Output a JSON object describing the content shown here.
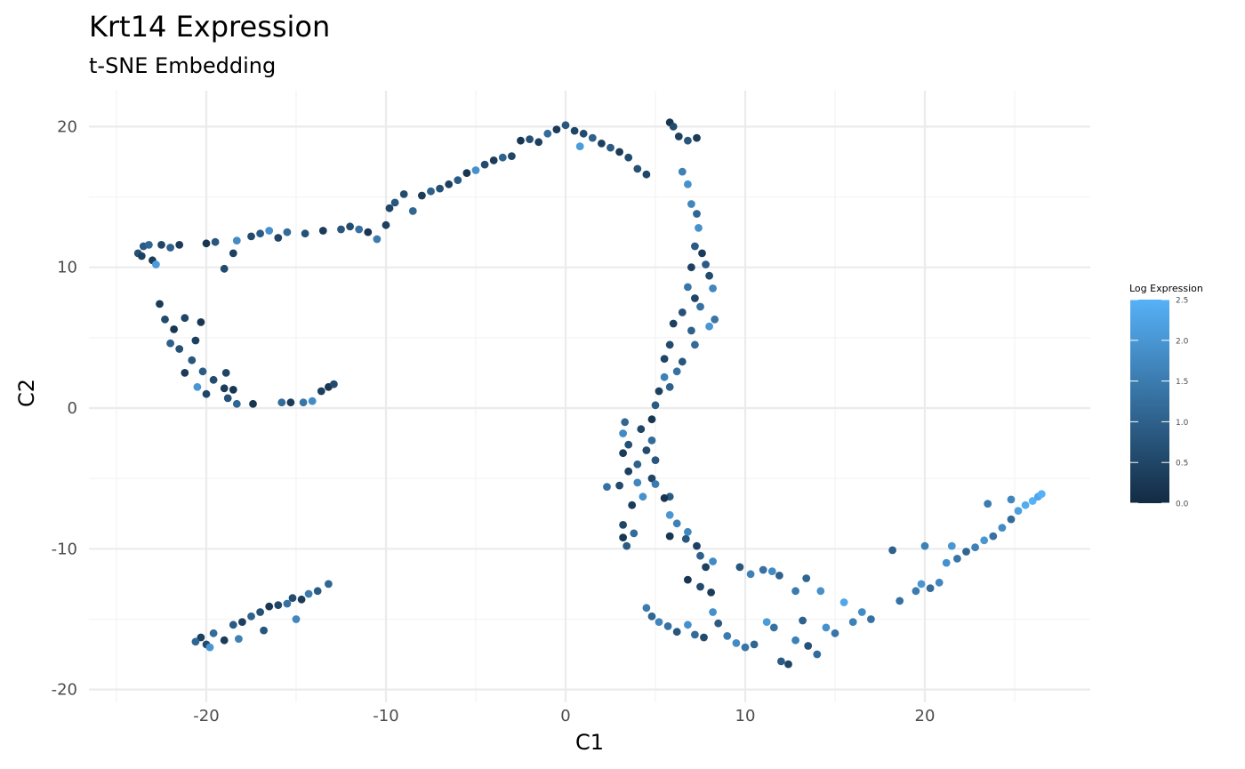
{
  "chart_data": {
    "type": "scatter",
    "title": "Krt14 Expression",
    "subtitle": "t-SNE Embedding",
    "xlabel": "C1",
    "ylabel": "C2",
    "xlim": [
      -25.5,
      29
    ],
    "ylim": [
      -20,
      22
    ],
    "x_ticks": [
      "-20",
      "-10",
      "0",
      "10",
      "20"
    ],
    "x_tick_values": [
      -20,
      -10,
      0,
      10,
      20
    ],
    "y_ticks": [
      "-20",
      "-10",
      "0",
      "10",
      "20"
    ],
    "y_tick_values": [
      -20,
      -10,
      0,
      10,
      20
    ],
    "grid": true,
    "legend": {
      "title": "Log Expression",
      "placement": "right",
      "min": 0,
      "max": 2.5,
      "ticks": [
        "0.0",
        "0.5",
        "1.0",
        "1.5",
        "2.0",
        "2.5"
      ],
      "tick_values": [
        0,
        0.5,
        1.0,
        1.5,
        2.0,
        2.5
      ],
      "color_low": "#132B43",
      "color_high": "#56B1F7"
    },
    "points": [
      [
        -23.5,
        11.5,
        0.9
      ],
      [
        -23.8,
        11.0,
        0.7
      ],
      [
        -23.2,
        11.6,
        1.1
      ],
      [
        -23.0,
        10.5,
        0.3
      ],
      [
        -22.8,
        10.2,
        2.1
      ],
      [
        -22.5,
        11.6,
        0.5
      ],
      [
        -22.0,
        11.4,
        1.0
      ],
      [
        -23.6,
        10.8,
        0.4
      ],
      [
        -21.5,
        11.6,
        0.3
      ],
      [
        -20.0,
        11.7,
        0.2
      ],
      [
        -19.5,
        11.8,
        0.8
      ],
      [
        -19.0,
        9.9,
        0.6
      ],
      [
        -18.5,
        11.0,
        0.4
      ],
      [
        -18.3,
        11.9,
        1.8
      ],
      [
        -17.5,
        12.2,
        0.6
      ],
      [
        -17.0,
        12.4,
        0.9
      ],
      [
        -16.5,
        12.6,
        1.9
      ],
      [
        -16.0,
        12.1,
        0.5
      ],
      [
        -15.5,
        12.5,
        1.2
      ],
      [
        -14.5,
        12.4,
        0.7
      ],
      [
        -13.5,
        12.6,
        0.3
      ],
      [
        -12.5,
        12.7,
        0.8
      ],
      [
        -12.0,
        12.9,
        0.6
      ],
      [
        -11.5,
        12.7,
        1.3
      ],
      [
        -11.0,
        12.5,
        0.2
      ],
      [
        -10.5,
        12.0,
        1.5
      ],
      [
        -10.0,
        13.0,
        0.4
      ],
      [
        -9.8,
        14.2,
        0.5
      ],
      [
        -9.5,
        14.6,
        0.8
      ],
      [
        -9.0,
        15.2,
        0.6
      ],
      [
        -8.5,
        14.0,
        1.1
      ],
      [
        -8.0,
        15.1,
        0.3
      ],
      [
        -7.5,
        15.4,
        1.0
      ],
      [
        -7.0,
        15.6,
        0.7
      ],
      [
        -6.5,
        15.9,
        0.4
      ],
      [
        -6.0,
        16.2,
        0.9
      ],
      [
        -5.5,
        16.7,
        0.2
      ],
      [
        -5.0,
        16.9,
        1.9
      ],
      [
        -4.5,
        17.3,
        0.6
      ],
      [
        -4.0,
        17.6,
        0.3
      ],
      [
        -3.5,
        17.8,
        1.0
      ],
      [
        -3.0,
        17.9,
        0.5
      ],
      [
        -2.5,
        19.0,
        0.2
      ],
      [
        -2.0,
        19.1,
        0.7
      ],
      [
        -1.5,
        18.9,
        0.4
      ],
      [
        -1.0,
        19.5,
        1.2
      ],
      [
        -0.5,
        19.8,
        0.3
      ],
      [
        0.0,
        20.1,
        0.8
      ],
      [
        0.5,
        19.7,
        0.5
      ],
      [
        0.8,
        18.6,
        2.1
      ],
      [
        1.0,
        19.5,
        0.6
      ],
      [
        1.5,
        19.2,
        1.0
      ],
      [
        2.0,
        18.8,
        0.4
      ],
      [
        2.5,
        18.5,
        0.9
      ],
      [
        3.0,
        18.2,
        0.3
      ],
      [
        3.5,
        17.8,
        0.6
      ],
      [
        4.0,
        17.0,
        0.7
      ],
      [
        4.5,
        16.6,
        0.5
      ],
      [
        5.8,
        20.3,
        0.2
      ],
      [
        6.0,
        20.0,
        0.6
      ],
      [
        6.3,
        19.3,
        0.4
      ],
      [
        6.8,
        19.0,
        0.8
      ],
      [
        7.3,
        19.2,
        0.3
      ],
      [
        6.5,
        16.8,
        1.6
      ],
      [
        6.8,
        15.9,
        1.9
      ],
      [
        7.0,
        14.5,
        1.7
      ],
      [
        7.3,
        13.8,
        1.1
      ],
      [
        7.4,
        12.8,
        1.9
      ],
      [
        7.2,
        11.5,
        0.9
      ],
      [
        7.6,
        11.0,
        0.3
      ],
      [
        7.0,
        10.0,
        0.4
      ],
      [
        7.8,
        10.2,
        0.9
      ],
      [
        8.0,
        9.4,
        0.6
      ],
      [
        6.8,
        8.6,
        1.4
      ],
      [
        7.2,
        7.8,
        0.5
      ],
      [
        8.2,
        8.5,
        1.7
      ],
      [
        6.5,
        6.8,
        0.7
      ],
      [
        7.5,
        7.2,
        1.3
      ],
      [
        6.0,
        6.0,
        0.4
      ],
      [
        8.3,
        6.3,
        1.4
      ],
      [
        7.0,
        5.5,
        1.0
      ],
      [
        8.0,
        5.8,
        2.0
      ],
      [
        5.8,
        4.5,
        0.6
      ],
      [
        7.2,
        4.5,
        1.2
      ],
      [
        5.5,
        3.5,
        0.5
      ],
      [
        6.5,
        3.3,
        0.8
      ],
      [
        5.5,
        2.2,
        1.6
      ],
      [
        6.2,
        2.6,
        1.3
      ],
      [
        5.2,
        1.2,
        0.4
      ],
      [
        5.8,
        1.5,
        1.0
      ],
      [
        5.0,
        0.2,
        0.9
      ],
      [
        4.8,
        -0.8,
        0.2
      ],
      [
        3.3,
        -1.0,
        1.1
      ],
      [
        3.2,
        -1.8,
        1.8
      ],
      [
        4.2,
        -1.5,
        0.5
      ],
      [
        4.8,
        -2.3,
        1.2
      ],
      [
        3.5,
        -2.6,
        0.7
      ],
      [
        3.2,
        -3.2,
        0.3
      ],
      [
        4.5,
        -3.0,
        0.6
      ],
      [
        4.0,
        -4.0,
        1.0
      ],
      [
        5.0,
        -3.7,
        0.8
      ],
      [
        3.5,
        -4.5,
        0.4
      ],
      [
        4.8,
        -5.0,
        0.5
      ],
      [
        2.3,
        -5.6,
        1.3
      ],
      [
        3.0,
        -5.5,
        0.6
      ],
      [
        4.0,
        -5.3,
        1.7
      ],
      [
        5.0,
        -5.4,
        1.5
      ],
      [
        5.8,
        -6.3,
        0.9
      ],
      [
        4.3,
        -6.3,
        1.9
      ],
      [
        3.7,
        -6.9,
        0.3
      ],
      [
        5.5,
        -6.4,
        0.2
      ],
      [
        3.2,
        -8.3,
        0.5
      ],
      [
        3.2,
        -9.2,
        0.2
      ],
      [
        3.4,
        -9.8,
        0.9
      ],
      [
        3.8,
        -8.9,
        1.2
      ],
      [
        5.8,
        -7.6,
        2.0
      ],
      [
        5.8,
        -9.1,
        0.2
      ],
      [
        6.2,
        -8.2,
        1.6
      ],
      [
        6.7,
        -9.3,
        0.8
      ],
      [
        6.8,
        -8.8,
        1.7
      ],
      [
        7.3,
        -9.8,
        0.4
      ],
      [
        7.5,
        -10.5,
        1.0
      ],
      [
        8.2,
        -10.9,
        1.8
      ],
      [
        7.8,
        -11.3,
        0.4
      ],
      [
        6.8,
        -12.2,
        0.2
      ],
      [
        7.5,
        -12.7,
        0.6
      ],
      [
        8.1,
        -13.1,
        0.3
      ],
      [
        9.7,
        -11.3,
        0.8
      ],
      [
        10.3,
        -11.8,
        1.6
      ],
      [
        11.0,
        -11.5,
        1.3
      ],
      [
        11.5,
        -11.6,
        1.8
      ],
      [
        11.9,
        -11.9,
        1.0
      ],
      [
        4.5,
        -14.2,
        1.5
      ],
      [
        4.8,
        -14.8,
        1.1
      ],
      [
        5.2,
        -15.2,
        1.7
      ],
      [
        5.7,
        -15.5,
        1.3
      ],
      [
        6.2,
        -15.9,
        0.8
      ],
      [
        6.8,
        -15.4,
        1.9
      ],
      [
        7.2,
        -16.1,
        1.2
      ],
      [
        7.7,
        -16.3,
        0.6
      ],
      [
        8.2,
        -14.5,
        1.9
      ],
      [
        8.5,
        -15.3,
        0.9
      ],
      [
        9.0,
        -16.2,
        1.5
      ],
      [
        9.5,
        -16.7,
        1.8
      ],
      [
        10.0,
        -17.0,
        1.4
      ],
      [
        10.5,
        -16.8,
        1.1
      ],
      [
        11.2,
        -15.2,
        2.1
      ],
      [
        11.6,
        -15.6,
        1.3
      ],
      [
        12.0,
        -18.0,
        0.9
      ],
      [
        12.4,
        -18.2,
        0.5
      ],
      [
        12.8,
        -16.5,
        1.6
      ],
      [
        13.2,
        -15.1,
        1.0
      ],
      [
        13.5,
        -16.9,
        0.7
      ],
      [
        14.0,
        -17.5,
        1.2
      ],
      [
        14.5,
        -15.6,
        1.9
      ],
      [
        15.0,
        -16.0,
        1.4
      ],
      [
        15.5,
        -13.8,
        2.3
      ],
      [
        16.0,
        -15.2,
        1.6
      ],
      [
        16.5,
        -14.5,
        1.8
      ],
      [
        17.0,
        -15.0,
        1.3
      ],
      [
        12.8,
        -13.0,
        1.5
      ],
      [
        13.4,
        -12.1,
        1.1
      ],
      [
        14.2,
        -13.0,
        1.9
      ],
      [
        18.2,
        -10.1,
        1.0
      ],
      [
        18.6,
        -13.7,
        1.3
      ],
      [
        19.5,
        -13.0,
        1.5
      ],
      [
        19.8,
        -12.5,
        2.0
      ],
      [
        20.0,
        -9.8,
        1.6
      ],
      [
        20.3,
        -12.8,
        1.2
      ],
      [
        20.8,
        -12.4,
        1.7
      ],
      [
        21.2,
        -11.0,
        1.9
      ],
      [
        21.5,
        -9.8,
        2.0
      ],
      [
        21.8,
        -10.7,
        1.4
      ],
      [
        22.3,
        -10.2,
        1.1
      ],
      [
        22.8,
        -9.9,
        1.6
      ],
      [
        23.3,
        -9.4,
        2.0
      ],
      [
        23.8,
        -9.1,
        1.3
      ],
      [
        24.3,
        -8.5,
        1.8
      ],
      [
        24.8,
        -7.9,
        1.2
      ],
      [
        25.2,
        -7.3,
        2.2
      ],
      [
        25.6,
        -6.9,
        2.4
      ],
      [
        26.0,
        -6.6,
        2.5
      ],
      [
        26.3,
        -6.3,
        2.3
      ],
      [
        23.5,
        -6.8,
        1.5
      ],
      [
        24.8,
        -6.5,
        1.7
      ],
      [
        26.5,
        -6.1,
        2.5
      ],
      [
        -22.6,
        7.4,
        0.3
      ],
      [
        -22.3,
        6.3,
        0.6
      ],
      [
        -21.8,
        5.6,
        0.2
      ],
      [
        -21.2,
        6.4,
        0.5
      ],
      [
        -22.0,
        4.6,
        1.0
      ],
      [
        -21.5,
        4.2,
        0.7
      ],
      [
        -20.6,
        4.8,
        0.4
      ],
      [
        -20.3,
        6.1,
        0.2
      ],
      [
        -20.8,
        3.4,
        0.8
      ],
      [
        -21.2,
        2.5,
        0.3
      ],
      [
        -20.2,
        2.6,
        0.9
      ],
      [
        -19.6,
        2.0,
        0.6
      ],
      [
        -20.5,
        1.5,
        2.0
      ],
      [
        -20.0,
        1.0,
        0.5
      ],
      [
        -19.0,
        1.4,
        0.3
      ],
      [
        -18.5,
        1.3,
        0.2
      ],
      [
        -18.3,
        0.3,
        1.1
      ],
      [
        -17.4,
        0.3,
        0.2
      ],
      [
        -18.8,
        0.7,
        0.7
      ],
      [
        -18.9,
        2.5,
        0.5
      ],
      [
        -15.8,
        0.4,
        1.2
      ],
      [
        -15.3,
        0.4,
        0.3
      ],
      [
        -14.6,
        0.4,
        1.4
      ],
      [
        -14.1,
        0.5,
        1.8
      ],
      [
        -13.6,
        1.2,
        0.4
      ],
      [
        -13.2,
        1.5,
        0.2
      ],
      [
        -12.9,
        1.7,
        0.6
      ],
      [
        -20.0,
        -16.8,
        0.6
      ],
      [
        -19.6,
        -16.0,
        1.2
      ],
      [
        -19.0,
        -16.5,
        0.3
      ],
      [
        -18.5,
        -15.4,
        0.9
      ],
      [
        -18.0,
        -15.2,
        0.4
      ],
      [
        -17.5,
        -14.8,
        1.0
      ],
      [
        -17.0,
        -14.5,
        0.7
      ],
      [
        -16.5,
        -14.1,
        0.2
      ],
      [
        -16.0,
        -14.0,
        0.5
      ],
      [
        -15.5,
        -13.9,
        1.3
      ],
      [
        -15.2,
        -13.5,
        0.6
      ],
      [
        -14.7,
        -13.6,
        0.3
      ],
      [
        -14.3,
        -13.2,
        1.5
      ],
      [
        -13.8,
        -13.0,
        0.9
      ],
      [
        -13.2,
        -12.5,
        1.1
      ],
      [
        -15.0,
        -15.0,
        1.7
      ],
      [
        -16.8,
        -15.8,
        0.8
      ],
      [
        -18.2,
        -16.4,
        1.6
      ],
      [
        -19.8,
        -17.0,
        2.0
      ],
      [
        -20.3,
        -16.3,
        0.4
      ],
      [
        -20.6,
        -16.6,
        1.1
      ]
    ]
  }
}
